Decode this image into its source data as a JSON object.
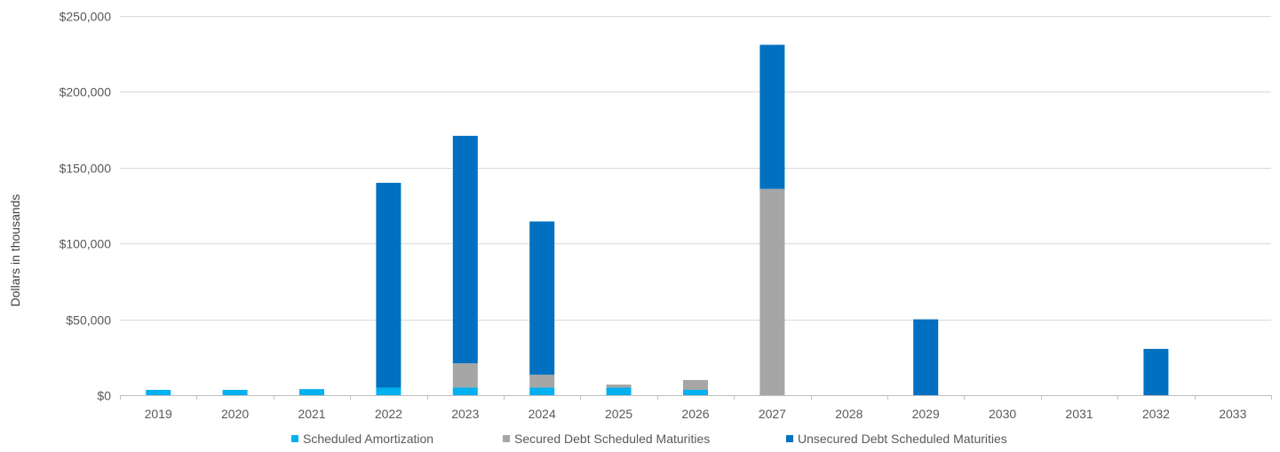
{
  "chart_data": {
    "type": "bar",
    "stacked": true,
    "title": "",
    "xlabel": "",
    "ylabel": "Dollars in thousands",
    "ylim": [
      0,
      250000
    ],
    "yticks": [
      "$0",
      "$50,000",
      "$100,000",
      "$150,000",
      "$200,000",
      "$250,000"
    ],
    "ytick_values": [
      0,
      50000,
      100000,
      150000,
      200000,
      250000
    ],
    "grid": true,
    "legend_position": "bottom",
    "categories": [
      "2019",
      "2020",
      "2021",
      "2022",
      "2023",
      "2024",
      "2025",
      "2026",
      "2027",
      "2028",
      "2029",
      "2030",
      "2031",
      "2032",
      "2033"
    ],
    "series": [
      {
        "name": "Scheduled Amortization",
        "color": "#00b0f0",
        "values": [
          3500,
          3500,
          4000,
          5000,
          5000,
          5000,
          5000,
          3500,
          0,
          0,
          0,
          0,
          0,
          0,
          0
        ]
      },
      {
        "name": "Secured Debt Scheduled Maturities",
        "color": "#a6a6a6",
        "values": [
          0,
          0,
          0,
          0,
          16000,
          8500,
          2000,
          6500,
          136000,
          0,
          0,
          0,
          0,
          0,
          0
        ]
      },
      {
        "name": "Unsecured Debt Scheduled Maturities",
        "color": "#0070c0",
        "values": [
          0,
          0,
          0,
          135000,
          150000,
          101000,
          0,
          0,
          95000,
          0,
          50000,
          0,
          0,
          30500,
          0
        ]
      }
    ]
  }
}
